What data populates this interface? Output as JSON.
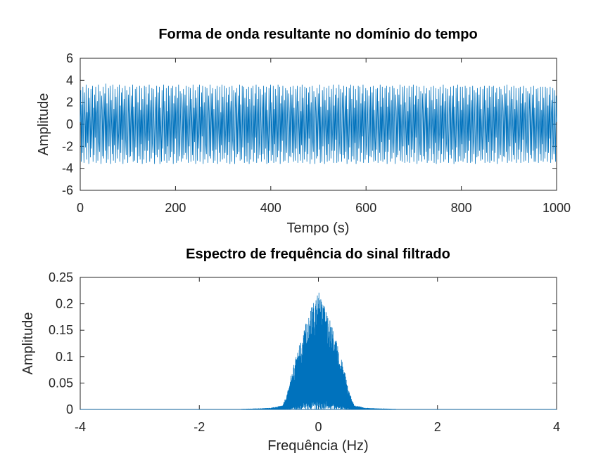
{
  "chart_data": [
    {
      "type": "line",
      "title": "Forma de onda resultante no domínio do tempo",
      "xlabel": "Tempo (s)",
      "ylabel": "Amplitude",
      "xlim": [
        0,
        1000
      ],
      "ylim": [
        -6,
        6
      ],
      "xticks": [
        0,
        200,
        400,
        600,
        800,
        1000
      ],
      "xtick_labels": [
        "0",
        "200",
        "400",
        "600",
        "800",
        "1000"
      ],
      "yticks": [
        -6,
        -4,
        -2,
        0,
        2,
        4,
        6
      ],
      "ytick_labels": [
        "-6",
        "-4",
        "-2",
        "0",
        "2",
        "4",
        "6"
      ],
      "grid": false,
      "color": "#0072bd",
      "series": [
        {
          "x_range": [
            0,
            1000
          ],
          "values": [
            0.2,
            3.1,
            -3.4,
            1.8,
            -2.6,
            3.4,
            -0.9,
            -3.5,
            2.9,
            0.4,
            -2.1,
            3.6,
            -3.2,
            1.1,
            -1.7,
            3.3,
            -3.6,
            2.4,
            0.6,
            -3.0,
            3.2,
            -2.2,
            -0.4,
            3.5,
            -3.4,
            1.5,
            -2.8,
            2.7,
            -1.2,
            3.4,
            -3.5,
            0.9,
            2.1,
            -3.3,
            3.6,
            -1.6,
            -2.5,
            3.0,
            -0.7,
            -3.6,
            2.6,
            1.3,
            -2.9,
            3.4,
            -3.1,
            0.3,
            2.8,
            -2.4,
            3.7,
            -3.5,
            1.9,
            -1.1,
            -3.2,
            3.3,
            -2.0,
            0.8,
            3.5,
            -3.6,
            2.2,
            -0.5,
            -2.7,
            3.6,
            -3.3,
            1.4,
            -1.9,
            3.2,
            -3.5,
            2.5,
            0.1,
            -3.1,
            3.4,
            -2.3,
            -0.8,
            3.6,
            -3.4,
            1.7,
            -2.6,
            2.9,
            -1.4,
            3.3,
            -3.6,
            0.6,
            2.3,
            -3.2,
            3.5,
            -1.3,
            -2.8,
            3.1,
            -0.2,
            -3.5,
            2.7,
            1.0,
            -3.0,
            3.4,
            -2.9,
            0.5,
            2.6,
            -2.5,
            3.6,
            -3.4,
            1.6,
            -0.9,
            -3.3,
            3.2,
            -2.1,
            1.2,
            3.4,
            -3.5,
            2.0,
            -0.3,
            -2.9,
            3.5,
            -3.2,
            1.3,
            -1.8,
            3.3,
            -3.6,
            2.3,
            0.4,
            -3.2,
            3.5,
            -2.4,
            -0.6,
            3.4,
            -3.5,
            1.8,
            -2.4,
            2.8,
            -1.5,
            3.6,
            -3.4,
            0.7,
            2.2,
            -3.1,
            3.3,
            -1.7,
            -2.6,
            3.2,
            -0.4,
            -3.6,
            2.5,
            1.1,
            -2.8,
            3.5,
            -3.0,
            0.2,
            2.9,
            -2.3,
            3.4,
            -3.6,
            1.5,
            -1.0,
            -3.4,
            3.1,
            -2.2,
            0.9,
            3.6,
            -3.3,
            2.1,
            -0.6,
            -2.7,
            3.3,
            -3.5,
            1.2,
            -2.0,
            3.5,
            -3.3,
            2.6,
            0.3,
            -3.0,
            3.3,
            -2.5,
            -0.7,
            3.5,
            -3.6,
            1.9,
            -2.7,
            2.6,
            -1.3,
            3.4,
            -3.5,
            0.8,
            2.4,
            -3.3,
            3.6,
            -1.5,
            -2.9,
            3.0,
            -0.5,
            -3.4,
            2.8,
            1.4,
            -3.1,
            3.2,
            -2.8,
            0.6,
            2.7,
            -2.6,
            3.5,
            -3.2,
            1.7,
            -1.2,
            -3.5,
            3.4,
            -2.0,
            1.0,
            3.3,
            -3.4,
            2.3,
            -0.2,
            -2.8,
            3.6,
            -3.3,
            1.5,
            -1.6,
            3.1,
            -3.6,
            2.4,
            0.5,
            -3.3,
            3.4,
            -2.2,
            -0.9,
            3.6,
            -3.4,
            1.6,
            -2.5,
            2.9,
            -1.1,
            3.5,
            -3.6,
            0.4,
            2.0,
            -3.2,
            3.4,
            -1.8,
            -2.7,
            3.3,
            -0.3,
            -3.5,
            2.6,
            1.2,
            -2.9,
            3.6,
            -3.1,
            0.1,
            2.8,
            -2.4,
            3.3,
            -3.5,
            1.4,
            -1.3,
            -3.3,
            3.2,
            -2.3,
            0.7,
            3.5,
            -3.6,
            2.2,
            -0.8,
            -2.6,
            3.4,
            -3.4,
            1.1,
            -1.9,
            3.6,
            -3.2,
            2.5,
            0.2,
            -3.1,
            3.5,
            -2.6,
            -0.5,
            3.3,
            -3.5,
            2.0,
            -2.8,
            2.7,
            -1.6,
            3.4,
            -3.6,
            0.9,
            2.1,
            -3.4,
            3.5,
            -1.4,
            -2.4,
            3.1,
            -0.6,
            -3.6,
            2.9,
            1.5,
            -3.0,
            3.3,
            -2.7,
            0.4,
            2.6,
            -2.5,
            3.6,
            -3.3,
            1.8,
            -1.0,
            -3.2,
            3.5,
            -2.1,
            1.1,
            3.4,
            -3.5,
            2.4,
            -0.4,
            -2.9,
            3.2,
            -3.4,
            1.6,
            -1.7,
            3.4,
            -3.6,
            2.3,
            0.6,
            -3.2,
            3.3,
            -2.3,
            -0.7,
            3.5,
            -3.4,
            1.7,
            -2.6,
            2.8,
            -1.2,
            3.6,
            -3.5,
            0.5,
            2.3,
            -3.1,
            3.4,
            -1.6,
            -2.8,
            3.2,
            -0.1,
            -3.4,
            2.7,
            1.3,
            -2.7,
            3.5,
            -3.2,
            0.3,
            2.9,
            -2.2,
            3.4,
            -3.6,
            1.3,
            -1.1,
            -3.5,
            3.3,
            -2.4,
            0.8,
            3.6,
            -3.3,
            2.0,
            -0.7,
            -2.8,
            3.5,
            -3.5,
            1.4,
            -1.8,
            3.2,
            -3.4,
            2.6,
            0.1,
            -3.0,
            3.6,
            -2.4,
            -0.6,
            3.4,
            -3.6,
            1.9,
            -2.5,
            2.6,
            -1.5,
            3.5,
            -3.4,
            0.8,
            2.2,
            -3.3,
            3.3,
            -1.7,
            -2.6,
            3.1,
            -0.4,
            -3.5,
            2.8,
            1.1,
            -2.9,
            3.4,
            -3.0,
            0.5,
            2.7,
            -2.6,
            3.5,
            -3.4,
            1.5,
            -0.9,
            -3.3,
            3.2,
            -2.2,
            1.3,
            3.5,
            -3.5,
            2.1,
            -0.3,
            -2.7,
            3.4,
            -3.3,
            1.2,
            -1.9,
            3.6,
            -3.5,
            2.4,
            0.3,
            -3.2,
            3.4,
            -2.5,
            -0.8,
            3.3,
            -3.4,
            1.8,
            -2.7,
            2.9,
            -1.3,
            3.4,
            -3.6,
            0.7,
            2.0,
            -3.2,
            3.5,
            -1.5,
            -2.5,
            3.0,
            -0.6,
            -3.6,
            2.5,
            1.2,
            -3.1,
            3.3,
            -2.9,
            0.2,
            2.8,
            -2.3,
            3.6,
            -3.5,
            1.6,
            -1.2,
            -3.4,
            3.1,
            -2.0,
            0.9,
            3.4,
            -3.6,
            2.2,
            -0.5,
            -2.8,
            3.3,
            -3.4,
            1.3,
            -1.8,
            3.5,
            -3.3,
            2.5,
            0.4,
            -3.1,
            3.2,
            -2.4,
            -0.5,
            3.6,
            -3.5,
            1.7,
            -2.4,
            2.7,
            -1.4,
            3.3,
            -3.5,
            0.6,
            2.4,
            -3.4,
            3.6,
            -1.6,
            -2.7,
            3.2,
            -0.3,
            -3.4,
            2.9,
            1.4,
            -2.8,
            3.5,
            -3.1,
            0.4,
            2.6,
            -2.5,
            3.4,
            -3.6,
            1.4,
            -1.0,
            -3.2,
            3.3,
            -2.1,
            1.0,
            3.6,
            -3.4,
            2.3,
            -0.6,
            -2.9,
            3.5,
            -3.2,
            1.5,
            -1.7,
            3.2,
            -3.6,
            2.2,
            0.5,
            -3.3,
            3.5,
            -2.2,
            -0.9,
            3.4,
            -3.4,
            1.9,
            -2.6,
            2.8,
            -1.1,
            3.6,
            -3.5,
            0.8,
            2.1,
            -3.2,
            3.3,
            -1.8,
            -2.8,
            3.1,
            -0.2,
            -3.5,
            2.6,
            1.0,
            -2.9,
            3.4,
            -3.0,
            0.6,
            2.9,
            -2.4,
            3.5,
            -3.4,
            1.3,
            -1.3,
            -3.3,
            3.2,
            -2.3,
            0.7,
            3.3,
            -3.5,
            2.1,
            -0.4,
            -2.6,
            3.6,
            -3.3,
            1.6,
            -1.6,
            3.4,
            -3.4,
            2.4,
            0.2,
            -3.2,
            3.3,
            -2.5,
            -0.6,
            3.5,
            -3.6,
            1.6,
            -2.5,
            2.9,
            -1.4,
            3.4,
            -3.4,
            0.5,
            2.2,
            -3.1,
            3.5,
            -1.5,
            -2.6,
            3.3,
            -0.5,
            -3.6,
            2.7,
            1.2,
            -3.0,
            3.2,
            -2.8,
            0.3,
            2.7,
            -2.4,
            3.6,
            -3.3,
            1.8,
            -1.1,
            -3.4,
            3.4,
            -2.0,
            1.2,
            3.5,
            -3.5,
            2.0,
            -0.6,
            -2.8,
            3.3,
            -3.4,
            1.2,
            -1.9,
            3.5,
            -3.5,
            2.5,
            0.4,
            -3.0,
            3.4,
            -2.3,
            -0.7,
            3.6,
            -3.4,
            1.8,
            -2.6,
            2.6,
            -1.2,
            3.5,
            -3.6,
            0.7,
            2.3,
            -3.3,
            3.4,
            -1.6,
            -2.8,
            3.0,
            -0.4,
            -3.4,
            2.8,
            1.3,
            -2.9,
            3.5,
            -3.2,
            0.2,
            2.8,
            -2.5,
            3.3,
            -3.5,
            1.5,
            -1.2,
            -3.3,
            3.1,
            -2.2,
            0.8,
            3.4,
            -3.3,
            2.2,
            -0.3,
            -2.7,
            3.5,
            -3.5,
            1.4,
            -1.7,
            3.3,
            -3.6,
            2.3,
            0.3,
            -3.2,
            3.2,
            -2.4,
            -0.5,
            3.4,
            -3.5,
            1.7,
            -2.7,
            2.8,
            -1.3,
            3.6,
            -3.4,
            0.6,
            2.1,
            -3.2,
            3.3,
            -1.7,
            -2.5,
            3.2,
            -0.6,
            -3.5,
            2.6,
            1.1,
            -2.8,
            3.4,
            -3.1,
            0.4,
            2.6,
            -2.3,
            3.5,
            -3.6,
            1.6,
            -1.0,
            -3.4,
            3.3,
            -2.1,
            1.0,
            3.6,
            -3.4,
            2.1,
            -0.5,
            -2.9,
            3.4,
            -3.3,
            1.3,
            -1.8,
            3.4,
            -3.4,
            2.4,
            0.5,
            -3.1,
            3.5,
            -2.6,
            -0.8,
            3.3,
            -3.5,
            1.8,
            -2.4,
            2.7,
            -1.5,
            3.4,
            -3.5,
            0.8,
            2.2,
            -3.4,
            3.5,
            -1.4,
            -2.7,
            3.1,
            -0.3,
            -3.6,
            2.9,
            1.4,
            -3.0,
            3.3,
            -2.9,
            0.5,
            2.7,
            -2.4,
            3.4,
            -3.3,
            1.4,
            -1.1,
            -3.2,
            3.2,
            -2.3,
            0.9,
            3.5,
            -3.5,
            2.2,
            -0.7,
            -2.6,
            3.3,
            -3.4,
            1.5,
            -1.6,
            3.5,
            -3.5,
            2.5,
            0.1,
            -3.3,
            3.4,
            -2.4,
            -0.6,
            3.5,
            -3.4,
            1.6,
            -2.6,
            2.9,
            -1.2,
            3.3,
            -3.6,
            0.6,
            2.3,
            -3.1,
            3.4,
            -1.6,
            -2.8,
            3.2,
            -0.5,
            -3.4,
            2.7,
            1.2,
            -2.9,
            3.5,
            -3.0,
            0.3,
            2.8,
            -2.5,
            3.6,
            -3.5,
            1.7,
            -1.3,
            -3.3,
            3.1,
            -2.0,
            1.1,
            3.4,
            -3.4,
            2.3,
            -0.4,
            -2.8,
            3.5,
            -3.2,
            1.4,
            -1.7,
            3.3,
            -3.5,
            2.2,
            0.4,
            -3.2,
            3.3,
            -2.3,
            -0.7,
            3.4,
            -3.5,
            1.9,
            -2.5,
            2.8,
            -1.4,
            3.5,
            -3.4,
            0.7,
            2.0,
            -3.3,
            3.3,
            -1.5,
            -2.6,
            3.0,
            -0.4,
            -3.5,
            2.8,
            1.3,
            -2.8,
            3.4,
            -3.1,
            0.2,
            2.7,
            -2.4,
            3.5,
            -3.4,
            1.5,
            -1.1,
            -3.4,
            3.2,
            -2.2,
            0.8,
            3.3,
            -3.5,
            2.1,
            -0.6,
            -2.7,
            3.4,
            -3.3,
            1.3,
            -1.8,
            3.4,
            -3.4,
            2.4,
            0.3,
            -3.1,
            3.4,
            -2.5,
            -0.6,
            3.3,
            -3.4,
            1.7,
            -2.6,
            2.7,
            -1.3,
            3.4,
            -3.5,
            0.8,
            2.2,
            -3.2,
            3.3,
            -1.6,
            -2.7,
            3.1,
            -0.3,
            -3.4,
            2.6,
            0.2
          ]
        }
      ]
    },
    {
      "type": "line",
      "title": "Espectro de frequência do sinal filtrado",
      "xlabel": "Frequência (Hz)",
      "ylabel": "Amplitude",
      "xlim": [
        -4,
        4
      ],
      "ylim": [
        0,
        0.25
      ],
      "xticks": [
        -4,
        -2,
        0,
        2,
        4
      ],
      "xtick_labels": [
        "-4",
        "-2",
        "0",
        "2",
        "4"
      ],
      "yticks": [
        0,
        0.05,
        0.1,
        0.15,
        0.2,
        0.25
      ],
      "ytick_labels": [
        "0",
        "0.05",
        "0.1",
        "0.15",
        "0.2",
        "0.25"
      ],
      "grid": false,
      "color": "#0072bd",
      "series": [
        {
          "x": [
            -4,
            -1.3,
            -1.0,
            -0.8,
            -0.6,
            -0.5,
            -0.45,
            -0.4,
            -0.3,
            -0.2,
            -0.1,
            0,
            0.1,
            0.2,
            0.3,
            0.4,
            0.45,
            0.5,
            0.6,
            0.8,
            1.0,
            1.3,
            4
          ],
          "envelope_max": [
            0,
            0.001,
            0.002,
            0.003,
            0.008,
            0.04,
            0.07,
            0.09,
            0.13,
            0.17,
            0.2,
            0.225,
            0.2,
            0.17,
            0.13,
            0.09,
            0.07,
            0.04,
            0.008,
            0.003,
            0.002,
            0.001,
            0
          ],
          "envelope_min": [
            0,
            0,
            0,
            0,
            0,
            0.003,
            0.005,
            0.006,
            0.01,
            0.015,
            0.02,
            0.02,
            0.02,
            0.015,
            0.01,
            0.006,
            0.005,
            0.003,
            0,
            0,
            0,
            0,
            0
          ]
        }
      ]
    }
  ]
}
